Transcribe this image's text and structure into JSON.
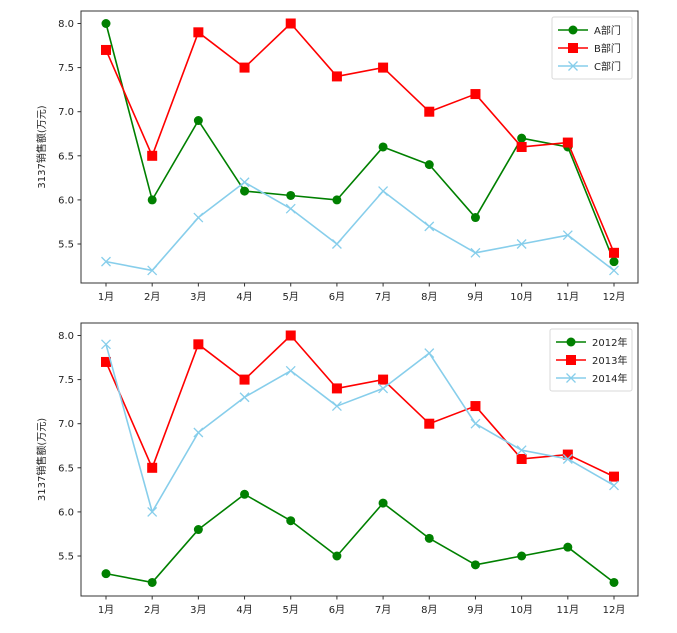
{
  "chart_data": [
    {
      "type": "line",
      "title": "",
      "xlabel": "",
      "ylabel": "3137销售额(万元)",
      "categories": [
        "1月",
        "2月",
        "3月",
        "4月",
        "5月",
        "6月",
        "7月",
        "8月",
        "9月",
        "10月",
        "11月",
        "12月"
      ],
      "yticks": [
        5.5,
        6.0,
        6.5,
        7.0,
        7.5,
        8.0
      ],
      "ytick_labels": [
        "5.5",
        "6.0",
        "6.5",
        "7.0",
        "7.5",
        "8.0"
      ],
      "ylim": [
        5.06,
        8.14
      ],
      "grid": false,
      "legend_position": "top-right",
      "series": [
        {
          "name": "A部门",
          "color": "#008000",
          "marker": "circle",
          "values": [
            8.0,
            6.0,
            6.9,
            6.1,
            6.05,
            6.0,
            6.6,
            6.4,
            5.8,
            6.7,
            6.6,
            5.3
          ]
        },
        {
          "name": "B部门",
          "color": "#ff0000",
          "marker": "square",
          "values": [
            7.7,
            6.5,
            7.9,
            7.5,
            8.0,
            7.4,
            7.5,
            7.0,
            7.2,
            6.6,
            6.65,
            5.4
          ]
        },
        {
          "name": "C部门",
          "color": "#87ceeb",
          "marker": "x",
          "values": [
            5.3,
            5.2,
            5.8,
            6.2,
            5.9,
            5.5,
            6.1,
            5.7,
            5.4,
            5.5,
            5.6,
            5.2
          ]
        }
      ]
    },
    {
      "type": "line",
      "title": "",
      "xlabel": "",
      "ylabel": "3137销售额(万元)",
      "categories": [
        "1月",
        "2月",
        "3月",
        "4月",
        "5月",
        "6月",
        "7月",
        "8月",
        "9月",
        "10月",
        "11月",
        "12月"
      ],
      "yticks": [
        5.5,
        6.0,
        6.5,
        7.0,
        7.5,
        8.0
      ],
      "ytick_labels": [
        "5.5",
        "6.0",
        "6.5",
        "7.0",
        "7.5",
        "8.0"
      ],
      "ylim": [
        5.06,
        8.14
      ],
      "grid": false,
      "legend_position": "top-right",
      "series": [
        {
          "name": "2012年",
          "color": "#008000",
          "marker": "circle",
          "values": [
            5.3,
            5.2,
            5.8,
            6.2,
            5.9,
            5.5,
            6.1,
            5.7,
            5.4,
            5.5,
            5.6,
            5.2
          ]
        },
        {
          "name": "2013年",
          "color": "#ff0000",
          "marker": "square",
          "values": [
            7.7,
            6.5,
            7.9,
            7.5,
            8.0,
            7.4,
            7.5,
            7.0,
            7.2,
            6.6,
            6.65,
            6.4
          ]
        },
        {
          "name": "2014年",
          "color": "#87ceeb",
          "marker": "x",
          "values": [
            7.9,
            6.0,
            6.9,
            7.3,
            7.6,
            7.2,
            7.4,
            7.8,
            7.0,
            6.7,
            6.6,
            6.3
          ]
        }
      ]
    }
  ]
}
